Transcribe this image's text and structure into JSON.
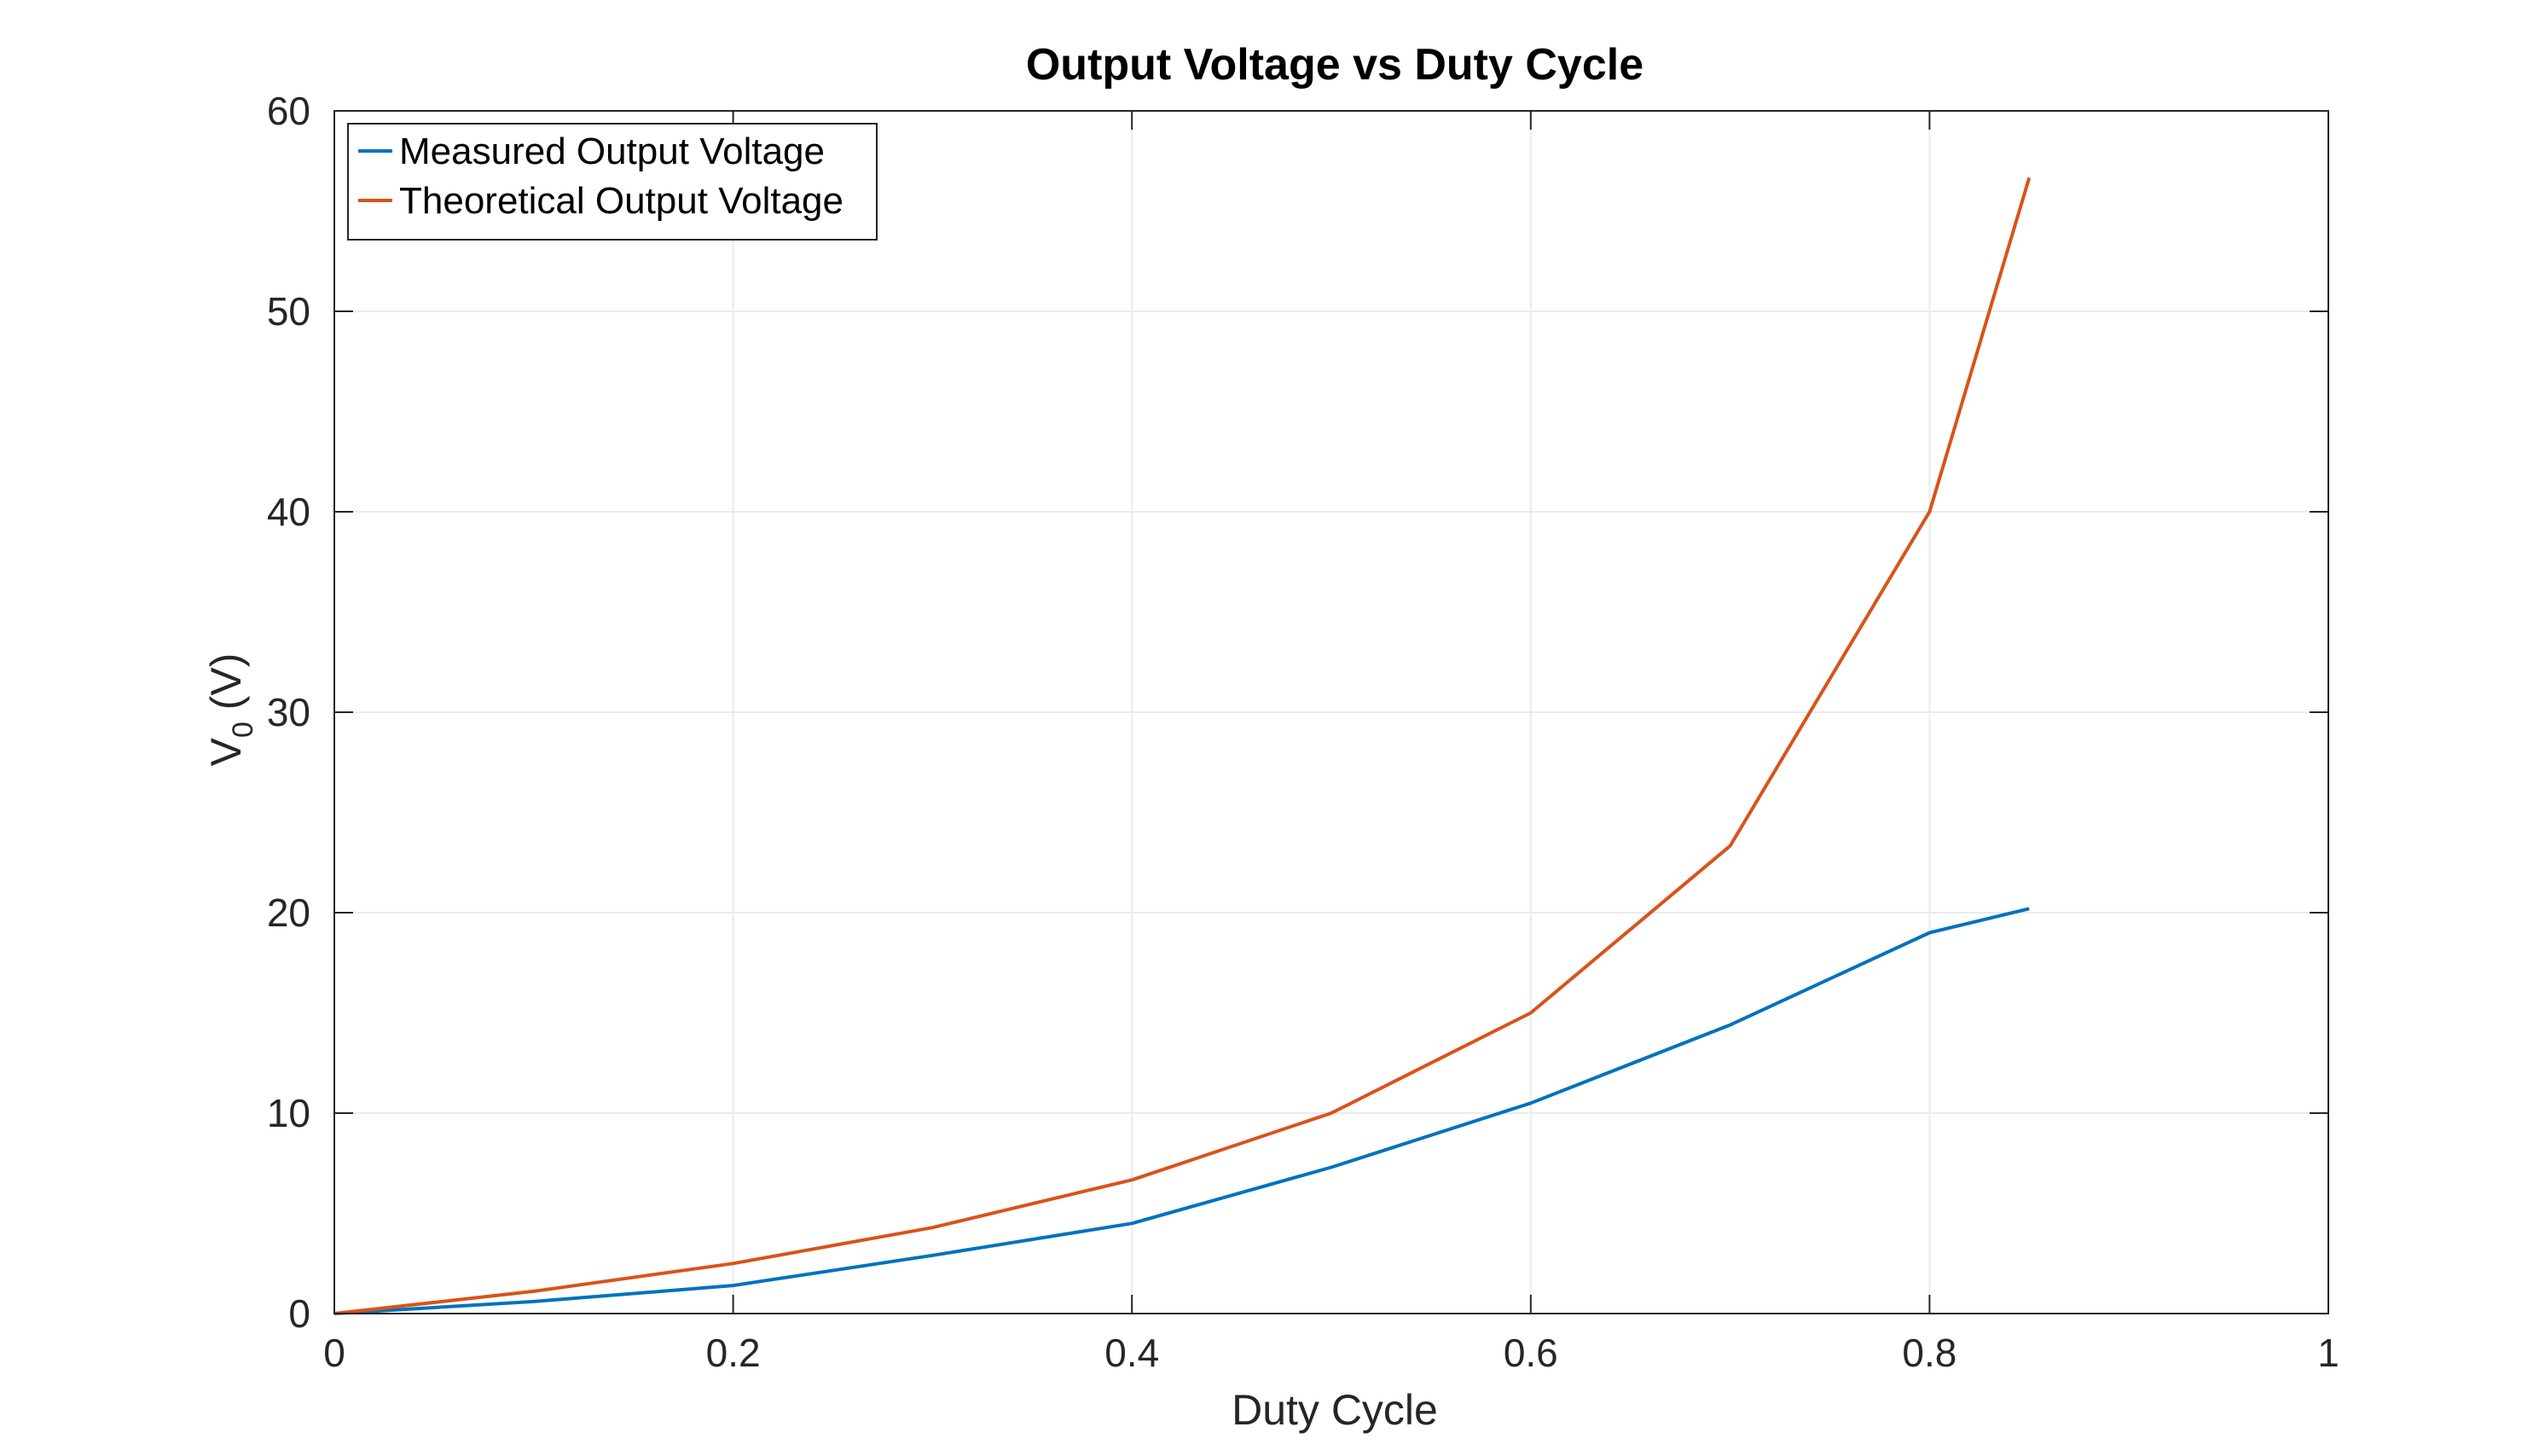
{
  "chart_data": {
    "type": "line",
    "title": "Output Voltage vs Duty Cycle",
    "xlabel": "Duty Cycle",
    "ylabel": {
      "main": "V",
      "subscript": "0",
      "suffix": " (V)"
    },
    "xlim": [
      0,
      1
    ],
    "ylim": [
      0,
      60
    ],
    "xticks": [
      0,
      0.2,
      0.4,
      0.6,
      0.8,
      1
    ],
    "xtick_labels": [
      "0",
      "0.2",
      "0.4",
      "0.6",
      "0.8",
      "1"
    ],
    "yticks": [
      0,
      10,
      20,
      30,
      40,
      50,
      60
    ],
    "ytick_labels": [
      "0",
      "10",
      "20",
      "30",
      "40",
      "50",
      "60"
    ],
    "grid": true,
    "legend_position": "top-left",
    "series": [
      {
        "name": "Measured Output Voltage",
        "color": "#0072BD",
        "x": [
          0,
          0.1,
          0.2,
          0.3,
          0.4,
          0.5,
          0.6,
          0.7,
          0.8,
          0.85
        ],
        "y": [
          0,
          0.6,
          1.4,
          2.9,
          4.5,
          7.3,
          10.5,
          14.4,
          19.0,
          20.2
        ]
      },
      {
        "name": "Theoretical Output Voltage",
        "color": "#D95319",
        "x": [
          0,
          0.1,
          0.2,
          0.3,
          0.4,
          0.5,
          0.6,
          0.7,
          0.8,
          0.85
        ],
        "y": [
          0,
          1.11,
          2.5,
          4.29,
          6.67,
          10.0,
          15.0,
          23.33,
          40.0,
          56.67
        ]
      }
    ]
  }
}
